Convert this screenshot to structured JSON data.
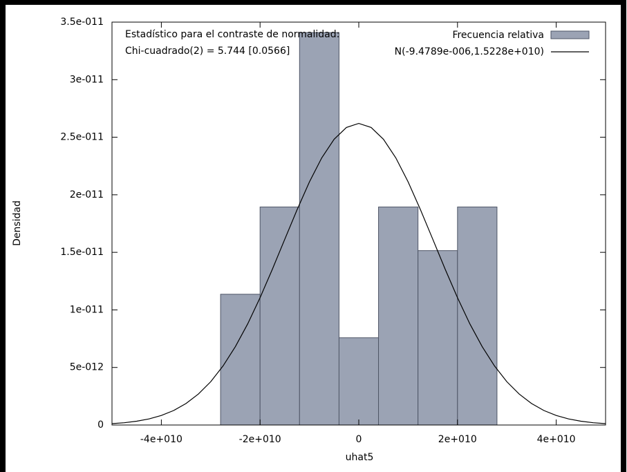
{
  "chart_data": {
    "type": "histogram",
    "annotations": [
      "Estadístico para el contraste de normalidad:",
      "Chi-cuadrado(2) = 5.744 [0.0566]"
    ],
    "xlabel": "uhat5",
    "ylabel": "Densidad",
    "name": "Frecuencia relativa",
    "color": "#9ba3b4",
    "bins": [
      -28000000000.0,
      -20000000000.0,
      -12000000000.0,
      -4000000000.0,
      4000000000.0,
      12000000000.0,
      20000000000.0,
      28000000000.0
    ],
    "values": [
      1.136e-11,
      1.894e-11,
      3.409e-11,
      7.58e-12,
      1.894e-11,
      1.515e-11,
      1.894e-11
    ],
    "curve": {
      "type": "line",
      "name": "N(-9.4789e-006,1.5228e+010)",
      "color": "#000000",
      "x": [
        -50000000000.0,
        -47500000000.0,
        -45000000000.0,
        -42500000000.0,
        -40000000000.0,
        -37500000000.0,
        -35000000000.0,
        -32500000000.0,
        -30000000000.0,
        -27500000000.0,
        -25000000000.0,
        -22500000000.0,
        -20000000000.0,
        -17500000000.0,
        -15000000000.0,
        -12500000000.0,
        -10000000000.0,
        -7500000000.0,
        -5000000000.0,
        -2500000000.0,
        0,
        2500000000.0,
        5000000000.0,
        7500000000.0,
        10000000000.0,
        12500000000.0,
        15000000000.0,
        17500000000.0,
        20000000000.0,
        22500000000.0,
        25000000000.0,
        27500000000.0,
        30000000000.0,
        32500000000.0,
        35000000000.0,
        37500000000.0,
        40000000000.0,
        42500000000.0,
        45000000000.0,
        47500000000.0,
        50000000000.0
      ],
      "values": [
        1.2e-13,
        2e-13,
        3.3e-13,
        5.3e-13,
        8.3e-13,
        1.26e-12,
        1.87e-12,
        2.69e-12,
        3.76e-12,
        5.13e-12,
        6.81e-12,
        8.79e-12,
        1.106e-11,
        1.354e-11,
        1.613e-11,
        1.87e-11,
        2.112e-11,
        2.321e-11,
        2.482e-11,
        2.585e-11,
        2.62e-11,
        2.585e-11,
        2.482e-11,
        2.321e-11,
        2.112e-11,
        1.87e-11,
        1.613e-11,
        1.354e-11,
        1.106e-11,
        8.79e-12,
        6.81e-12,
        5.13e-12,
        3.76e-12,
        2.69e-12,
        1.87e-12,
        1.26e-12,
        8.3e-13,
        5.3e-13,
        3.3e-13,
        2e-13,
        1.2e-13
      ]
    },
    "xlim": [
      -50000000000.0,
      50000000000.0
    ],
    "xticks": [
      {
        "value": -40000000000.0,
        "label": "-4e+010"
      },
      {
        "value": -20000000000.0,
        "label": "-2e+010"
      },
      0,
      {
        "value": 20000000000.0,
        "label": "2e+010"
      },
      {
        "value": 40000000000.0,
        "label": "4e+010"
      }
    ],
    "ylim": [
      0,
      3.5e-11
    ],
    "yticks": [
      0,
      {
        "value": 5e-12,
        "label": "5e-012"
      },
      {
        "value": 1e-11,
        "label": "1e-011"
      },
      {
        "value": 1.5e-11,
        "label": "1.5e-011"
      },
      {
        "value": 2e-11,
        "label": "2e-011"
      },
      {
        "value": 2.5e-11,
        "label": "2.5e-011"
      },
      {
        "value": 3e-11,
        "label": "3e-011"
      },
      {
        "value": 3.5e-11,
        "label": "3.5e-011"
      }
    ],
    "legend": "upper right"
  }
}
